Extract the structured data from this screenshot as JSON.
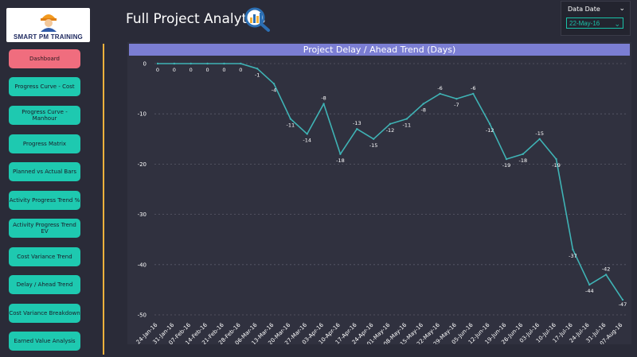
{
  "logo": {
    "text": "SMART PM TRAINING"
  },
  "header": {
    "title": "Full Project Analytics",
    "icon": "analytics-magnifier-icon"
  },
  "data_date": {
    "label": "Data Date",
    "value": "22-May-16"
  },
  "nav": {
    "items": [
      {
        "label": "Dashboard",
        "active": true
      },
      {
        "label": "Progress Curve - Cost"
      },
      {
        "label": "Progress Curve - Manhour"
      },
      {
        "label": "Progress Matrix"
      },
      {
        "label": "Planned vs Actual Bars"
      },
      {
        "label": "Activity Progress Trend %"
      },
      {
        "label": "Activity Progress Trend EV"
      },
      {
        "label": "Cost Variance Trend"
      },
      {
        "label": "Delay / Ahead Trend"
      },
      {
        "label": "Cost Variance Breakdown"
      },
      {
        "label": "Earned Value Analysis"
      }
    ]
  },
  "colors": {
    "accent": "#1ec9b0",
    "active": "#f06d7e",
    "title_bar": "#7b7ed3",
    "divider": "#f2b23d",
    "line": "#3fb3b5"
  },
  "chart_data": {
    "type": "line",
    "title": "Project Delay / Ahead Trend (Days)",
    "xlabel": "",
    "ylabel": "",
    "ylim": [
      -50,
      0
    ],
    "yticks": [
      0,
      -10,
      -20,
      -30,
      -40,
      -50
    ],
    "grid": true,
    "categories": [
      "24-Jan-16",
      "31-Jan-16",
      "07-Feb-16",
      "14-Feb-16",
      "21-Feb-16",
      "28-Feb-16",
      "06-Mar-16",
      "13-Mar-16",
      "20-Mar-16",
      "27-Mar-16",
      "03-Apr-16",
      "10-Apr-16",
      "17-Apr-16",
      "24-Apr-16",
      "01-May-16",
      "08-May-16",
      "15-May-16",
      "22-May-16",
      "29-May-16",
      "05-Jun-16",
      "12-Jun-16",
      "19-Jun-16",
      "26-Jun-16",
      "03-Jul-16",
      "10-Jul-16",
      "17-Jul-16",
      "24-Jul-16",
      "31-Jul-16",
      "07-Aug-16"
    ],
    "values": [
      0,
      0,
      0,
      0,
      0,
      0,
      -1,
      -4,
      -11,
      -14,
      -8,
      -18,
      -13,
      -15,
      -12,
      -11,
      -8,
      -6,
      -7,
      -6,
      -12,
      -19,
      -18,
      -15,
      -19,
      -37,
      -44,
      -42,
      -47
    ]
  }
}
